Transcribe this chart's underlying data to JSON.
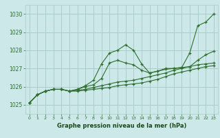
{
  "title": "Graphe pression niveau de la mer (hPa)",
  "bg_color": "#cce8e8",
  "grid_color": "#aacccc",
  "line_color": "#2d6e2d",
  "marker_color": "#2d6e2d",
  "xlim": [
    -0.5,
    23.5
  ],
  "ylim": [
    1024.5,
    1030.5
  ],
  "yticks": [
    1025,
    1026,
    1027,
    1028,
    1029,
    1030
  ],
  "xticks": [
    0,
    1,
    2,
    3,
    4,
    5,
    6,
    7,
    8,
    9,
    10,
    11,
    12,
    13,
    14,
    15,
    16,
    17,
    18,
    19,
    20,
    21,
    22,
    23
  ],
  "series": [
    [
      1025.1,
      1025.55,
      1025.75,
      1025.85,
      1025.85,
      1025.75,
      1025.85,
      1026.05,
      1026.35,
      1027.25,
      1027.85,
      1028.0,
      1028.3,
      1028.0,
      1027.25,
      1026.75,
      1026.85,
      1027.0,
      1027.0,
      1027.05,
      1027.85,
      1029.35,
      1029.55,
      1030.0
    ],
    [
      1025.1,
      1025.55,
      1025.75,
      1025.85,
      1025.85,
      1025.75,
      1025.85,
      1026.0,
      1026.1,
      1026.45,
      1027.3,
      1027.45,
      1027.3,
      1027.2,
      1026.9,
      1026.75,
      1026.85,
      1026.95,
      1027.0,
      1027.05,
      1027.1,
      1027.2,
      1027.25,
      1027.3
    ],
    [
      1025.1,
      1025.55,
      1025.75,
      1025.85,
      1025.85,
      1025.75,
      1025.8,
      1025.85,
      1025.95,
      1026.05,
      1026.15,
      1026.25,
      1026.3,
      1026.35,
      1026.45,
      1026.55,
      1026.65,
      1026.75,
      1026.9,
      1027.0,
      1027.1,
      1027.45,
      1027.75,
      1027.95
    ],
    [
      1025.1,
      1025.55,
      1025.75,
      1025.85,
      1025.85,
      1025.75,
      1025.75,
      1025.8,
      1025.85,
      1025.9,
      1025.95,
      1026.05,
      1026.1,
      1026.15,
      1026.2,
      1026.3,
      1026.4,
      1026.55,
      1026.7,
      1026.8,
      1026.9,
      1027.0,
      1027.1,
      1027.15
    ]
  ]
}
